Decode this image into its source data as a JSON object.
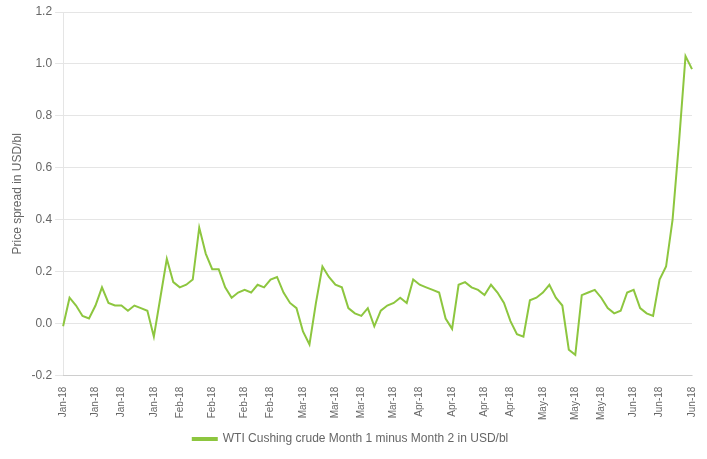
{
  "chart_data": {
    "type": "line",
    "ylabel": "Price spread in USD/bl",
    "categories": [
      "Jan-18",
      null,
      null,
      null,
      null,
      "Jan-18",
      null,
      null,
      null,
      "Jan-18",
      null,
      null,
      null,
      null,
      "Jan-18",
      null,
      null,
      null,
      "Feb-18",
      null,
      null,
      null,
      null,
      "Feb-18",
      null,
      null,
      null,
      null,
      "Feb-18",
      null,
      null,
      null,
      "Feb-18",
      null,
      null,
      null,
      null,
      "Mar-18",
      null,
      null,
      null,
      null,
      "Mar-18",
      null,
      null,
      null,
      "Mar-18",
      null,
      null,
      null,
      null,
      "Mar-18",
      null,
      null,
      null,
      "Apr-18",
      null,
      null,
      null,
      null,
      "Apr-18",
      null,
      null,
      null,
      null,
      "Apr-18",
      null,
      null,
      null,
      "Apr-18",
      null,
      null,
      null,
      null,
      "May-18",
      null,
      null,
      null,
      null,
      "May-18",
      null,
      null,
      null,
      "May-18",
      null,
      null,
      null,
      null,
      "Jun-18",
      null,
      null,
      null,
      "Jun-18",
      null,
      null,
      null,
      null,
      "Jun-18"
    ],
    "series": [
      {
        "name": "WTI Cushing crude Month 1 minus Month 2 in USD/bl",
        "color": "#8dc63f",
        "values": [
          -0.01,
          0.1,
          0.07,
          0.03,
          0.02,
          0.07,
          0.14,
          0.08,
          0.07,
          0.07,
          0.05,
          0.07,
          0.06,
          0.05,
          -0.05,
          0.1,
          0.25,
          0.16,
          0.14,
          0.15,
          0.17,
          0.37,
          0.27,
          0.21,
          0.21,
          0.14,
          0.1,
          0.12,
          0.13,
          0.12,
          0.15,
          0.14,
          0.17,
          0.18,
          0.12,
          0.08,
          0.06,
          -0.03,
          -0.08,
          0.08,
          0.22,
          0.18,
          0.15,
          0.14,
          0.06,
          0.04,
          0.03,
          0.06,
          -0.01,
          0.05,
          0.07,
          0.08,
          0.1,
          0.08,
          0.17,
          0.15,
          0.14,
          0.13,
          0.12,
          0.02,
          -0.02,
          0.15,
          0.16,
          0.14,
          0.13,
          0.11,
          0.15,
          0.12,
          0.08,
          0.01,
          -0.04,
          -0.05,
          0.09,
          0.1,
          0.12,
          0.15,
          0.1,
          0.07,
          -0.1,
          -0.12,
          0.11,
          0.12,
          0.13,
          0.1,
          0.06,
          0.04,
          0.05,
          0.12,
          0.13,
          0.06,
          0.04,
          0.03,
          0.17,
          0.22,
          0.4,
          0.7,
          1.03,
          0.98
        ]
      }
    ],
    "ylim": [
      -0.2,
      1.2
    ],
    "yticks": [
      -0.2,
      {
        "value": 0.0,
        "label": "0.0"
      },
      0.2,
      0.4,
      0.6,
      0.8,
      {
        "value": 1.0,
        "label": "1.0"
      },
      1.2
    ],
    "grid": true,
    "legend": "bottom"
  }
}
